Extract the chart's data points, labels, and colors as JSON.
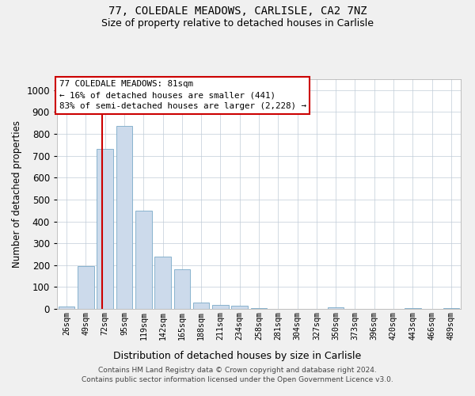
{
  "title": "77, COLEDALE MEADOWS, CARLISLE, CA2 7NZ",
  "subtitle": "Size of property relative to detached houses in Carlisle",
  "xlabel": "Distribution of detached houses by size in Carlisle",
  "ylabel": "Number of detached properties",
  "bar_color": "#ccdaeb",
  "bar_edge_color": "#7aaac8",
  "categories": [
    "26sqm",
    "49sqm",
    "72sqm",
    "95sqm",
    "119sqm",
    "142sqm",
    "165sqm",
    "188sqm",
    "211sqm",
    "234sqm",
    "258sqm",
    "281sqm",
    "304sqm",
    "327sqm",
    "350sqm",
    "373sqm",
    "396sqm",
    "420sqm",
    "443sqm",
    "466sqm",
    "489sqm"
  ],
  "values": [
    12,
    195,
    730,
    835,
    450,
    240,
    180,
    30,
    17,
    13,
    5,
    0,
    0,
    0,
    7,
    0,
    0,
    0,
    5,
    0,
    5
  ],
  "vline_x": 1.85,
  "vline_color": "#cc0000",
  "ylim": [
    0,
    1050
  ],
  "yticks": [
    0,
    100,
    200,
    300,
    400,
    500,
    600,
    700,
    800,
    900,
    1000
  ],
  "annotation_text": "77 COLEDALE MEADOWS: 81sqm\n← 16% of detached houses are smaller (441)\n83% of semi-detached houses are larger (2,228) →",
  "footer_line1": "Contains HM Land Registry data © Crown copyright and database right 2024.",
  "footer_line2": "Contains public sector information licensed under the Open Government Licence v3.0.",
  "bg_color": "#f0f0f0",
  "plot_bg_color": "#ffffff",
  "grid_color": "#c0ccd8"
}
